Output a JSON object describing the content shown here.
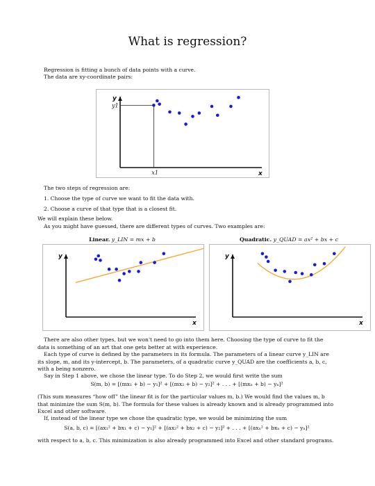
{
  "title": "What is regression?",
  "intro": {
    "line1": "Regression is fitting a bunch of data points with a curve.",
    "line2": "The data are xy-coordinate pairs:"
  },
  "fig_main": {
    "y_axis": "y",
    "x_axis": "x",
    "y1_label": "y1",
    "x1_label": "x1",
    "points": [
      {
        "x": 0.88,
        "y": 0.56
      },
      {
        "x": 0.97,
        "y": 0.6
      },
      {
        "x": 1.03,
        "y": 0.57
      },
      {
        "x": 1.3,
        "y": 0.5
      },
      {
        "x": 1.55,
        "y": 0.49
      },
      {
        "x": 1.72,
        "y": 0.39
      },
      {
        "x": 1.9,
        "y": 0.46
      },
      {
        "x": 2.07,
        "y": 0.49
      },
      {
        "x": 2.4,
        "y": 0.55
      },
      {
        "x": 2.55,
        "y": 0.47
      },
      {
        "x": 2.9,
        "y": 0.55
      },
      {
        "x": 3.1,
        "y": 0.63
      }
    ],
    "point_color": "#1a1adc"
  },
  "steps": {
    "intro": "The two steps of regression are:",
    "items": [
      "1.  Choose the type of curve we want to fit the data with.",
      "2.  Choose a curve of that type that is a closest fit."
    ],
    "explain": "We will explain these below.",
    "guess": "As you might have guessed, there are different types of curves. Two examples are:"
  },
  "fig_linear": {
    "caption_bold": "Linear.",
    "caption_formula": "y_LIN = mx + b",
    "y_axis": "y",
    "x_axis": "x",
    "points": [
      {
        "x": 0.78,
        "y": 0.52
      },
      {
        "x": 0.85,
        "y": 0.55
      },
      {
        "x": 0.9,
        "y": 0.51
      },
      {
        "x": 1.13,
        "y": 0.43
      },
      {
        "x": 1.32,
        "y": 0.43
      },
      {
        "x": 1.4,
        "y": 0.33
      },
      {
        "x": 1.52,
        "y": 0.39
      },
      {
        "x": 1.66,
        "y": 0.41
      },
      {
        "x": 1.9,
        "y": 0.41
      },
      {
        "x": 1.96,
        "y": 0.49
      },
      {
        "x": 2.32,
        "y": 0.49
      },
      {
        "x": 2.56,
        "y": 0.57
      }
    ],
    "fit": {
      "slope": 0.0913,
      "intercept": 0.287
    },
    "fit_range": [
      0.25,
      3.6
    ],
    "point_color": "#1a1adc",
    "curve_color": "#f5a623"
  },
  "fig_quad": {
    "caption_bold": "Quadratic.",
    "caption_formula": "y_QUAD = ax² + bx + c",
    "y_axis": "y",
    "x_axis": "x",
    "points": [
      {
        "x": 0.78,
        "y": 0.57
      },
      {
        "x": 0.88,
        "y": 0.54
      },
      {
        "x": 0.93,
        "y": 0.5
      },
      {
        "x": 1.12,
        "y": 0.42
      },
      {
        "x": 1.36,
        "y": 0.41
      },
      {
        "x": 1.5,
        "y": 0.32
      },
      {
        "x": 1.65,
        "y": 0.4
      },
      {
        "x": 1.82,
        "y": 0.39
      },
      {
        "x": 2.06,
        "y": 0.38
      },
      {
        "x": 2.15,
        "y": 0.47
      },
      {
        "x": 2.4,
        "y": 0.48
      },
      {
        "x": 2.66,
        "y": 0.57
      }
    ],
    "fit_range": [
      0.65,
      2.95
    ],
    "point_color": "#1a1adc",
    "curve_color": "#f5a623"
  },
  "body": {
    "p1": "There are also other types, but we won't need to go into them here. Choosing the type of curve to fit the data is something of an art that one gets better at with experience.",
    "p2": "Each type of curve is defined by the parameters in its formula. The parameters of a linear curve y_LIN are its slope, m, and its y-intercept, b. The parameters, of a quadratic curve y_QUAD are the coefficients a, b, c, with a being nonzero.",
    "p3": "Say in Step 1 above, we chose the linear type. To do Step 2, we would first write the sum",
    "eq1": "S(m, b) = [(mx₁ + b) − y₁]² + [(mx₂ + b) − y₂]² + . . . + [(mxₙ + b) − yₙ]²",
    "p4": "(This sum measures “how off” the linear fit is for the particular values m, b.) We would find the values m, b that minimize the sum S(m, b). The formula for these values is already known and is already programmed into Excel and other software.",
    "p5": "If, instead of the linear type we chose the quadratic type, we would be minimizing the sum",
    "eq2": "S(a, b, c) = [(ax₁² + bx₁ + c) − y₁]² + [(ax₂² + bx₂ + c) − y₂]² + . . . + [(axₙ² + bxₙ + c) − yₙ]²",
    "p6": "with respect to a, b, c. This minimization is also already programmed into Excel and other standard programs."
  }
}
